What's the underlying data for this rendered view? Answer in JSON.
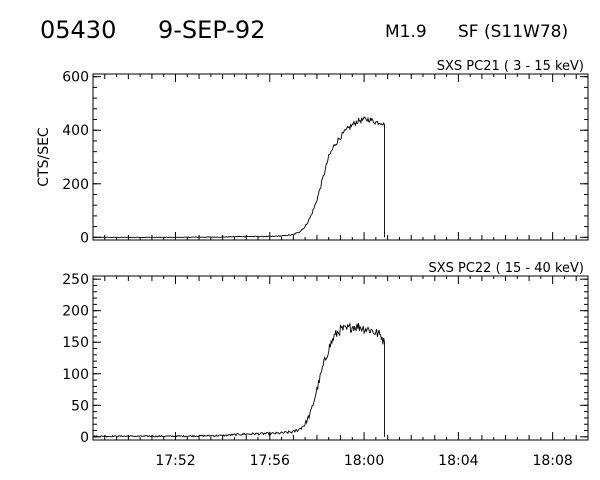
{
  "header": {
    "event_id": "05430",
    "date": "9-SEP-92",
    "goes_class": "M1.9",
    "h_alpha": "SF (S11W78)"
  },
  "chart_data": [
    {
      "type": "line",
      "title": "SXS PC21  (  3 - 15 keV)",
      "ylabel": "CTS/SEC",
      "xlabel": "",
      "x_range": [
        "17:48:30",
        "18:09:30"
      ],
      "ylim": [
        -10,
        610
      ],
      "yticks": [
        0,
        200,
        400,
        600
      ],
      "xticks": [
        "17:52",
        "17:56",
        "18:00",
        "18:04",
        "18:08"
      ],
      "series": [
        {
          "x": [
            "17:48:30",
            "17:52:00",
            "17:54:00",
            "17:54:45",
            "17:55:30",
            "17:56:00",
            "17:56:30",
            "17:57:00",
            "17:57:15",
            "17:57:30",
            "17:57:45",
            "17:58:00",
            "17:58:15",
            "17:58:30",
            "17:58:45",
            "17:59:00",
            "17:59:15",
            "17:59:30",
            "17:59:45",
            "18:00:00",
            "18:00:15",
            "18:00:30",
            "18:00:45",
            "18:00:50",
            "18:00:52"
          ],
          "y": [
            0,
            0,
            1,
            3,
            3,
            3,
            5,
            10,
            20,
            40,
            80,
            140,
            220,
            300,
            345,
            375,
            400,
            420,
            435,
            440,
            440,
            430,
            430,
            420,
            0
          ],
          "noise": 10
        }
      ]
    },
    {
      "type": "line",
      "title": "SXS PC22  ( 15 - 40 keV)",
      "ylabel": "",
      "xlabel": "",
      "x_range": [
        "17:48:30",
        "18:09:30"
      ],
      "ylim": [
        -5,
        255
      ],
      "yticks": [
        0,
        50,
        100,
        150,
        200,
        250
      ],
      "xticks": [
        "17:52",
        "17:56",
        "18:00",
        "18:04",
        "18:08"
      ],
      "series": [
        {
          "x": [
            "17:48:30",
            "17:52:00",
            "17:54:00",
            "17:54:45",
            "17:55:30",
            "17:56:00",
            "17:56:30",
            "17:57:00",
            "17:57:15",
            "17:57:30",
            "17:57:45",
            "17:58:00",
            "17:58:15",
            "17:58:30",
            "17:58:45",
            "17:59:00",
            "17:59:15",
            "17:59:30",
            "17:59:45",
            "18:00:00",
            "18:00:15",
            "18:00:30",
            "18:00:45",
            "18:00:50",
            "18:00:52"
          ],
          "y": [
            1,
            1,
            2,
            4,
            5,
            5,
            6,
            8,
            12,
            20,
            40,
            75,
            110,
            140,
            160,
            170,
            170,
            175,
            175,
            172,
            170,
            165,
            160,
            150,
            0
          ],
          "noise": 8
        }
      ]
    }
  ]
}
